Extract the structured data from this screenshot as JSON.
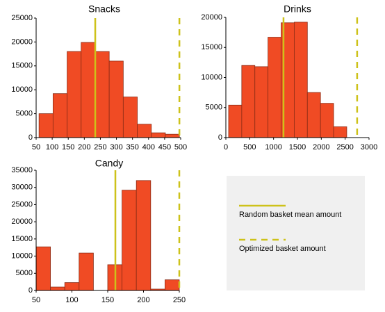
{
  "chart_data": [
    {
      "type": "histogram",
      "title": "Snacks",
      "bins": [
        59,
        102.7,
        146.4,
        190.1,
        233.8,
        277.5,
        321.2,
        364.9,
        408.6,
        452.3,
        496
      ],
      "values": [
        5000,
        9200,
        18000,
        19900,
        18000,
        16000,
        8500,
        2800,
        1000,
        700
      ],
      "color": "#f04b24",
      "edgecolor": "#8a2c16",
      "xlim": [
        50,
        500
      ],
      "xticks": [
        50,
        100,
        150,
        200,
        250,
        300,
        350,
        400,
        450,
        500
      ],
      "ylim": [
        0,
        25000
      ],
      "yticks": [
        0,
        5000,
        10000,
        15000,
        20000,
        25000
      ],
      "mean": 234,
      "optimized": 496
    },
    {
      "type": "histogram",
      "title": "Drinks",
      "bins": [
        58,
        333,
        608,
        883,
        1158,
        1433,
        1708,
        1983,
        2258,
        2533
      ],
      "values": [
        5400,
        12000,
        11800,
        16700,
        19100,
        19200,
        7500,
        5700,
        1800
      ],
      "color": "#f04b24",
      "edgecolor": "#8a2c16",
      "xlim": [
        0,
        3000
      ],
      "xticks": [
        0,
        500,
        1000,
        1500,
        2000,
        2500,
        3000
      ],
      "ylim": [
        0,
        20000
      ],
      "yticks": [
        0,
        5000,
        10000,
        15000,
        20000
      ],
      "mean": 1208,
      "optimized": 2751
    },
    {
      "type": "histogram",
      "title": "Candy",
      "bins": [
        50,
        70,
        90,
        110,
        130,
        150,
        170,
        190,
        210,
        230,
        250
      ],
      "values": [
        12700,
        1000,
        2300,
        10900,
        0,
        7500,
        29200,
        32000,
        400,
        3100
      ],
      "color": "#f04b24",
      "edgecolor": "#8a2c16",
      "xlim": [
        50,
        250
      ],
      "xticks": [
        50,
        100,
        150,
        200,
        250
      ],
      "ylim": [
        0,
        35000
      ],
      "yticks": [
        0,
        5000,
        10000,
        15000,
        20000,
        25000,
        30000,
        35000
      ],
      "mean": 160.7,
      "optimized": 250
    }
  ],
  "legend": {
    "items": [
      {
        "label": "Random basket mean amount",
        "style": "solid",
        "color": "#cdc21a"
      },
      {
        "label": "Optimized basket amount",
        "style": "dashed",
        "color": "#cdc21a"
      }
    ]
  }
}
